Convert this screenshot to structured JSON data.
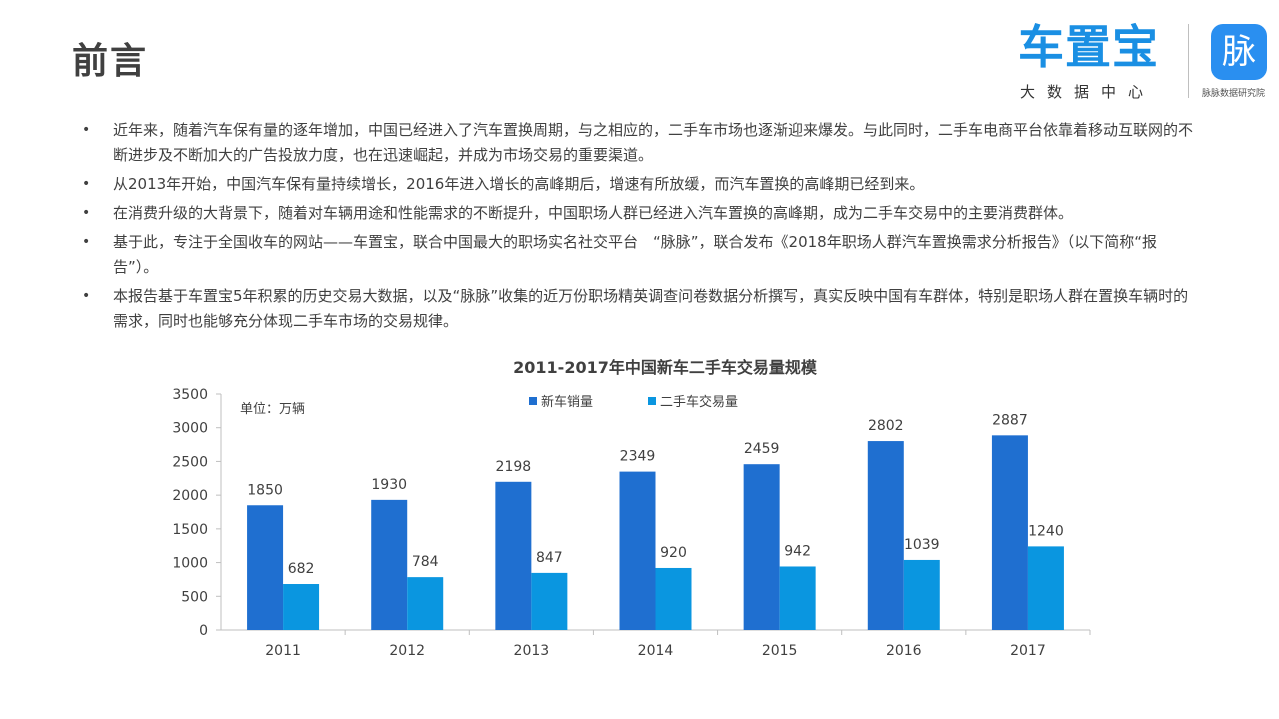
{
  "header": {
    "title": "前言",
    "logo_main": "车置宝",
    "logo_main_sub": "大数据中心",
    "logo_maimai": "脉",
    "logo_maimai_sub": "脉脉数据研究院"
  },
  "intro": {
    "bullet": "•",
    "paragraphs": [
      "近年来，随着汽车保有量的逐年增加，中国已经进入了汽车置换周期，与之相应的，二手车市场也逐渐迎来爆发。与此同时，二手车电商平台依靠着移动互联网的不断进步及不断加大的广告投放力度，也在迅速崛起，并成为市场交易的重要渠道。",
      "从2013年开始，中国汽车保有量持续增长，2016年进入增长的高峰期后，增速有所放缓，而汽车置换的高峰期已经到来。",
      "在消费升级的大背景下，随着对车辆用途和性能需求的不断提升，中国职场人群已经进入汽车置换的高峰期，成为二手车交易中的主要消费群体。",
      "基于此，专注于全国收车的网站——车置宝，联合中国最大的职场实名社交平台　“脉脉”，联合发布《2018年职场人群汽车置换需求分析报告》（以下简称“报告”）。",
      "本报告基于车置宝5年积累的历史交易大数据，以及“脉脉”收集的近万份职场精英调查问卷数据分析撰写，真实反映中国有车群体，特别是职场人群在置换车辆时的需求，同时也能够充分体现二手车市场的交易规律。"
    ]
  },
  "chart_data": {
    "type": "bar",
    "title": "2011-2017年中国新车二手车交易量规模",
    "unit_label": "单位：万辆",
    "categories": [
      "2011",
      "2012",
      "2013",
      "2014",
      "2015",
      "2016",
      "2017"
    ],
    "series": [
      {
        "name": "新车销量",
        "color": "#1f6fd0",
        "values": [
          1850,
          1930,
          2198,
          2349,
          2459,
          2802,
          2887
        ]
      },
      {
        "name": "二手车交易量",
        "color": "#0a96e0",
        "values": [
          682,
          784,
          847,
          920,
          942,
          1039,
          1240
        ]
      }
    ],
    "ylim": [
      0,
      3500
    ],
    "yticks": [
      0,
      500,
      1000,
      1500,
      2000,
      2500,
      3000,
      3500
    ],
    "grid": false,
    "legend_position": "top-center"
  }
}
